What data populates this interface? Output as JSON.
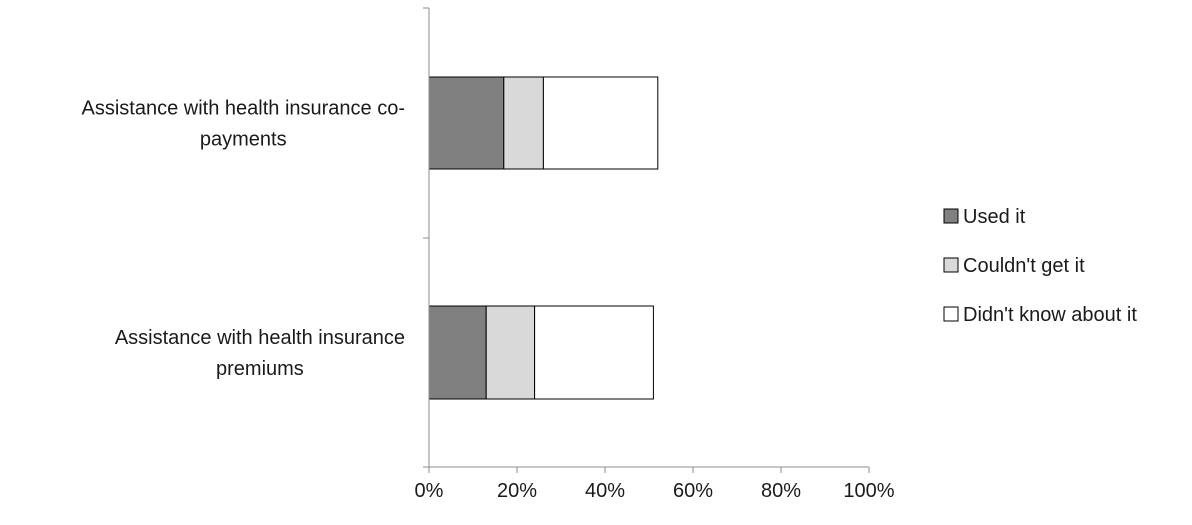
{
  "chart_data": {
    "type": "bar",
    "orientation": "horizontal",
    "stacked": true,
    "categories": [
      [
        "Assistance with health insurance co-",
        "payments"
      ],
      [
        "Assistance with health insurance",
        "premiums"
      ]
    ],
    "series": [
      {
        "name": "Used it",
        "values": [
          17,
          13
        ],
        "color": "#808080"
      },
      {
        "name": "Couldn't get it",
        "values": [
          9,
          11
        ],
        "color": "#d9d9d9"
      },
      {
        "name": "Didn't know about it",
        "values": [
          26,
          27
        ],
        "color": "#ffffff"
      }
    ],
    "x_ticks": [
      "0%",
      "20%",
      "40%",
      "60%",
      "80%",
      "100%"
    ],
    "xlim": [
      0,
      100
    ],
    "unit": "%",
    "grid": false,
    "legend_position": "right",
    "title": "",
    "xlabel": "",
    "ylabel": ""
  }
}
